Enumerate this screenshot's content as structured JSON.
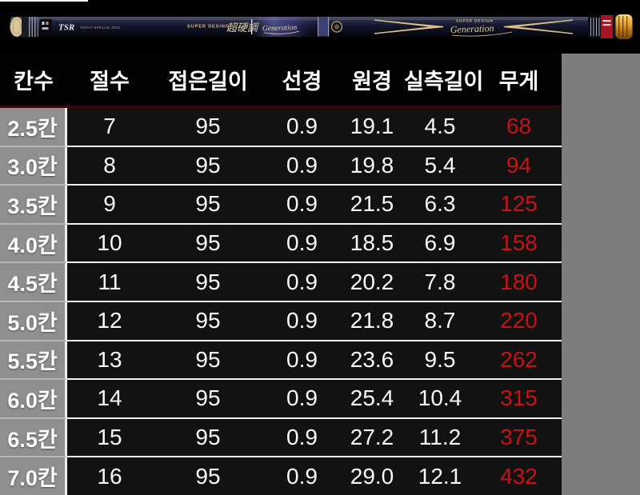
{
  "page": {
    "background": "#7d7d7d",
    "photo_band_background": "#000000"
  },
  "rod_image": {
    "description": "fishing-rod-product-photo",
    "tsr_logo": "TSR",
    "tsr_subtext": "TORAY SPECIAL ROD",
    "left_brand": "SUPER DESING",
    "calligraphy": "超硬調",
    "left_signature": "Generation",
    "right_brand": "SUPER DESIGN",
    "right_signature": "Generation",
    "colors": {
      "blank_navy": "#14162c",
      "accent_gold": "#d8c088",
      "grip_cream": "#d8c69c",
      "butt_band_red": "#a61420",
      "cap_gold": "#e8a93a"
    }
  },
  "spec_table": {
    "headers": [
      "칸수",
      "절수",
      "접은길이",
      "선경",
      "원경",
      "실측길이",
      "무게"
    ],
    "header_keys": [
      "kansu",
      "jeolsu",
      "folded-length",
      "tip-diameter",
      "butt-diameter",
      "measured-length",
      "weight"
    ],
    "rows": [
      [
        "2.5칸",
        "7",
        "95",
        "0.9",
        "19.1",
        "4.5",
        "68"
      ],
      [
        "3.0칸",
        "8",
        "95",
        "0.9",
        "19.8",
        "5.4",
        "94"
      ],
      [
        "3.5칸",
        "9",
        "95",
        "0.9",
        "21.5",
        "6.3",
        "125"
      ],
      [
        "4.0칸",
        "10",
        "95",
        "0.9",
        "18.5",
        "6.9",
        "158"
      ],
      [
        "4.5칸",
        "11",
        "95",
        "0.9",
        "20.2",
        "7.8",
        "180"
      ],
      [
        "5.0칸",
        "12",
        "95",
        "0.9",
        "21.8",
        "8.7",
        "220"
      ],
      [
        "5.5칸",
        "13",
        "95",
        "0.9",
        "23.6",
        "9.5",
        "262"
      ],
      [
        "6.0칸",
        "14",
        "95",
        "0.9",
        "25.4",
        "10.4",
        "315"
      ],
      [
        "6.5칸",
        "15",
        "95",
        "0.9",
        "27.2",
        "11.2",
        "375"
      ],
      [
        "7.0칸",
        "16",
        "95",
        "0.9",
        "29.0",
        "12.1",
        "432"
      ]
    ],
    "weight_text_color": "#c41414",
    "header_text_color": "#ffffff",
    "body_text_color": "#fafafa"
  }
}
